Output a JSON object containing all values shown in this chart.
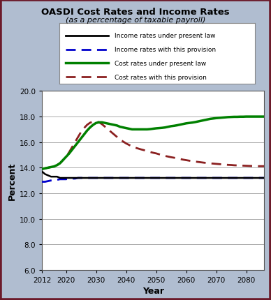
{
  "title": "OASDI Cost Rates and Income Rates",
  "subtitle": "(as a percentage of taxable payroll)",
  "xlabel": "Year",
  "ylabel": "Percent",
  "ylim": [
    6.0,
    20.0
  ],
  "yticks": [
    6.0,
    8.0,
    10.0,
    12.0,
    14.0,
    16.0,
    18.0,
    20.0
  ],
  "xticks": [
    2012,
    2020,
    2030,
    2040,
    2050,
    2060,
    2070,
    2080
  ],
  "xlim": [
    2012,
    2086
  ],
  "background_color": "#b0bdd0",
  "plot_bg_color": "#ffffff",
  "border_color": "#6b1a2a",
  "legend_labels": [
    "Income rates under present law",
    "Income rates with this provision",
    "Cost rates under present law",
    "Cost rates with this provision"
  ],
  "years": [
    2012,
    2013,
    2014,
    2015,
    2016,
    2017,
    2018,
    2019,
    2020,
    2021,
    2022,
    2023,
    2024,
    2025,
    2026,
    2027,
    2028,
    2029,
    2030,
    2031,
    2032,
    2033,
    2034,
    2035,
    2036,
    2037,
    2038,
    2039,
    2040,
    2041,
    2042,
    2043,
    2044,
    2045,
    2046,
    2047,
    2048,
    2049,
    2050,
    2051,
    2052,
    2053,
    2054,
    2055,
    2056,
    2057,
    2058,
    2059,
    2060,
    2061,
    2062,
    2063,
    2064,
    2065,
    2066,
    2067,
    2068,
    2069,
    2070,
    2071,
    2072,
    2073,
    2074,
    2075,
    2076,
    2077,
    2078,
    2079,
    2080,
    2081,
    2082,
    2083,
    2084,
    2085,
    2086
  ],
  "income_present_law": [
    13.7,
    13.5,
    13.4,
    13.3,
    13.3,
    13.3,
    13.2,
    13.2,
    13.2,
    13.2,
    13.2,
    13.2,
    13.2,
    13.2,
    13.2,
    13.2,
    13.2,
    13.2,
    13.2,
    13.2,
    13.2,
    13.2,
    13.2,
    13.2,
    13.2,
    13.2,
    13.2,
    13.2,
    13.2,
    13.2,
    13.2,
    13.2,
    13.2,
    13.2,
    13.2,
    13.2,
    13.2,
    13.2,
    13.2,
    13.2,
    13.2,
    13.2,
    13.2,
    13.2,
    13.2,
    13.2,
    13.2,
    13.2,
    13.2,
    13.2,
    13.2,
    13.2,
    13.2,
    13.2,
    13.2,
    13.2,
    13.2,
    13.2,
    13.2,
    13.2,
    13.2,
    13.2,
    13.2,
    13.2,
    13.2,
    13.2,
    13.2,
    13.2,
    13.2,
    13.2,
    13.2,
    13.2,
    13.2,
    13.2,
    13.2
  ],
  "income_provision": [
    12.9,
    12.9,
    12.95,
    13.0,
    13.05,
    13.05,
    13.1,
    13.1,
    13.1,
    13.15,
    13.15,
    13.15,
    13.2,
    13.2,
    13.2,
    13.2,
    13.2,
    13.2,
    13.2,
    13.2,
    13.2,
    13.2,
    13.2,
    13.2,
    13.2,
    13.2,
    13.2,
    13.2,
    13.2,
    13.2,
    13.2,
    13.2,
    13.2,
    13.2,
    13.2,
    13.2,
    13.2,
    13.2,
    13.2,
    13.2,
    13.2,
    13.2,
    13.2,
    13.2,
    13.2,
    13.2,
    13.2,
    13.2,
    13.2,
    13.2,
    13.2,
    13.2,
    13.2,
    13.2,
    13.2,
    13.2,
    13.2,
    13.2,
    13.2,
    13.2,
    13.2,
    13.2,
    13.2,
    13.2,
    13.2,
    13.2,
    13.2,
    13.2,
    13.2,
    13.2,
    13.2,
    13.2,
    13.2,
    13.2,
    13.2
  ],
  "cost_present_law": [
    13.9,
    13.95,
    14.0,
    14.05,
    14.1,
    14.2,
    14.35,
    14.6,
    14.85,
    15.1,
    15.4,
    15.7,
    16.0,
    16.3,
    16.6,
    16.9,
    17.15,
    17.35,
    17.5,
    17.55,
    17.55,
    17.5,
    17.45,
    17.4,
    17.35,
    17.3,
    17.2,
    17.15,
    17.1,
    17.05,
    17.0,
    17.0,
    17.0,
    17.0,
    17.0,
    17.0,
    17.02,
    17.05,
    17.08,
    17.1,
    17.12,
    17.15,
    17.2,
    17.25,
    17.28,
    17.32,
    17.37,
    17.42,
    17.47,
    17.5,
    17.53,
    17.57,
    17.62,
    17.67,
    17.72,
    17.77,
    17.82,
    17.85,
    17.88,
    17.9,
    17.92,
    17.94,
    17.96,
    17.97,
    17.98,
    17.98,
    17.99,
    17.99,
    18.0,
    18.0,
    18.0,
    18.0,
    18.0,
    18.0,
    18.0
  ],
  "cost_provision": [
    13.9,
    13.95,
    14.0,
    14.05,
    14.1,
    14.2,
    14.35,
    14.6,
    14.85,
    15.2,
    15.6,
    16.0,
    16.4,
    16.8,
    17.1,
    17.35,
    17.52,
    17.6,
    17.62,
    17.55,
    17.4,
    17.2,
    17.0,
    16.8,
    16.6,
    16.4,
    16.2,
    16.05,
    15.9,
    15.78,
    15.67,
    15.57,
    15.5,
    15.43,
    15.37,
    15.3,
    15.23,
    15.17,
    15.12,
    15.05,
    14.98,
    14.92,
    14.87,
    14.82,
    14.78,
    14.73,
    14.68,
    14.63,
    14.59,
    14.55,
    14.51,
    14.48,
    14.45,
    14.42,
    14.39,
    14.37,
    14.34,
    14.32,
    14.3,
    14.28,
    14.26,
    14.24,
    14.22,
    14.21,
    14.19,
    14.18,
    14.17,
    14.16,
    14.15,
    14.14,
    14.13,
    14.13,
    14.12,
    14.12,
    14.12
  ]
}
